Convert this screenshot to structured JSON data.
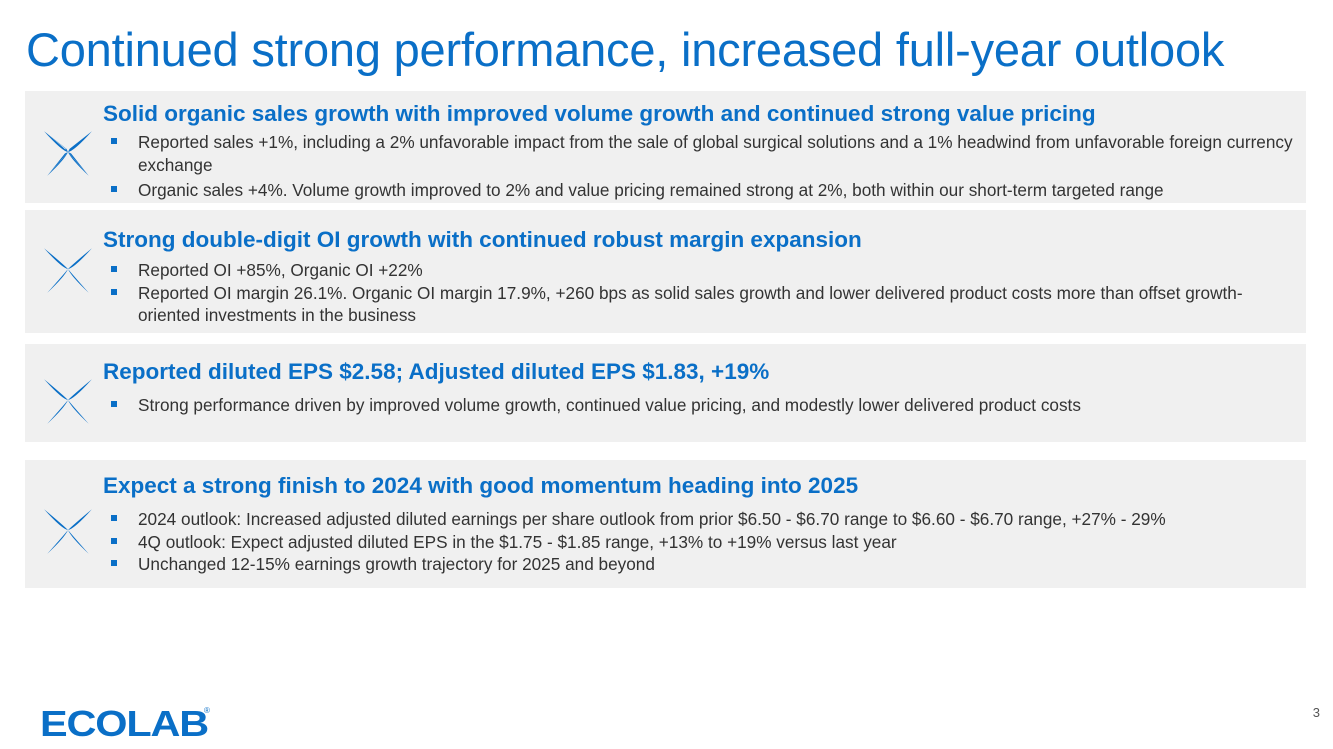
{
  "title": "Continued strong performance, increased full-year outlook",
  "colors": {
    "accent": "#0a6fc7",
    "panel": "#f0f0f0",
    "text": "#333333"
  },
  "icon": "ecolab-star-icon",
  "sections": [
    {
      "heading": "Solid organic sales growth with improved volume growth and continued strong value pricing",
      "bullets": [
        "Reported sales +1%, including a 2% unfavorable impact from the sale of global surgical solutions and a 1% headwind from unfavorable foreign currency exchange",
        "Organic sales +4%. Volume growth improved to 2% and value pricing remained strong at 2%, both within our short-term targeted range"
      ]
    },
    {
      "heading": "Strong double-digit OI growth with continued robust margin expansion",
      "bullets": [
        "Reported OI +85%, Organic OI +22%",
        "Reported OI margin 26.1%. Organic OI margin 17.9%, +260 bps as solid sales growth and lower delivered product costs more than offset growth-oriented investments in the business"
      ]
    },
    {
      "heading": "Reported diluted EPS $2.58; Adjusted diluted EPS $1.83, +19%",
      "bullets": [
        "Strong performance driven by improved volume growth, continued value pricing, and modestly lower delivered product costs"
      ]
    },
    {
      "heading": "Expect a strong finish to 2024 with good momentum heading into 2025",
      "bullets": [
        "2024 outlook: Increased adjusted diluted earnings per share outlook from prior $6.50 - $6.70 range to $6.60 - $6.70 range, +27% - 29%",
        "4Q outlook: Expect adjusted diluted EPS in the $1.75 - $1.85 range, +13% to +19% versus last year",
        "Unchanged 12-15% earnings growth trajectory for 2025 and beyond"
      ]
    }
  ],
  "logo": {
    "text": "ECOLAB",
    "mark": "®"
  },
  "page_number": "3"
}
